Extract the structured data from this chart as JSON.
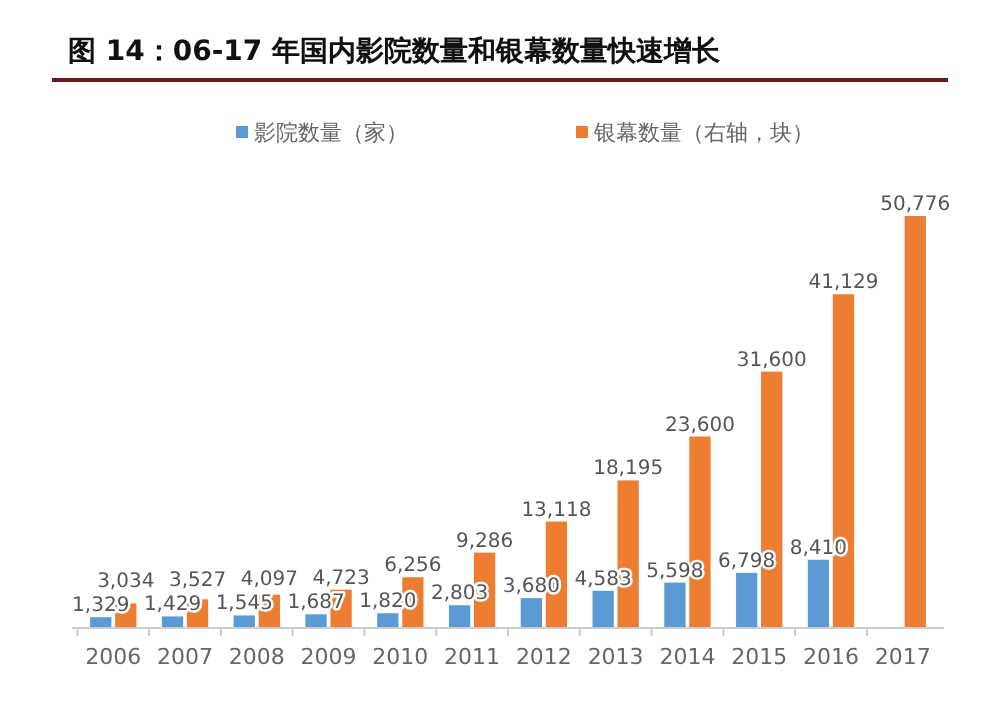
{
  "chart_data": {
    "type": "bar",
    "title": "图 14：06-17 年国内影院数量和银幕数量快速增长",
    "categories": [
      "2006",
      "2007",
      "2008",
      "2009",
      "2010",
      "2011",
      "2012",
      "2013",
      "2014",
      "2015",
      "2016",
      "2017"
    ],
    "series": [
      {
        "name": "影院数量（家）",
        "color": "#5b9bd5",
        "values": [
          1329,
          1429,
          1545,
          1687,
          1820,
          2803,
          3680,
          4583,
          5598,
          6798,
          8410,
          null
        ],
        "value_labels": [
          "1,329",
          "1,429",
          "1,545",
          "1,687",
          "1,820",
          "2,803",
          "3,680",
          "4,583",
          "5,598",
          "6,798",
          "8,410",
          null
        ]
      },
      {
        "name": "银幕数量（右轴，块）",
        "color": "#ed7d31",
        "values": [
          3034,
          3527,
          4097,
          4723,
          6256,
          9286,
          13118,
          18195,
          23600,
          31600,
          41129,
          50776
        ],
        "value_labels": [
          "3,034",
          "3,527",
          "4,097",
          "4,723",
          "6,256",
          "9,286",
          "13,118",
          "18,195",
          "23,600",
          "31,600",
          "41,129",
          "50,776"
        ]
      }
    ],
    "legend": "top",
    "grid": false
  }
}
